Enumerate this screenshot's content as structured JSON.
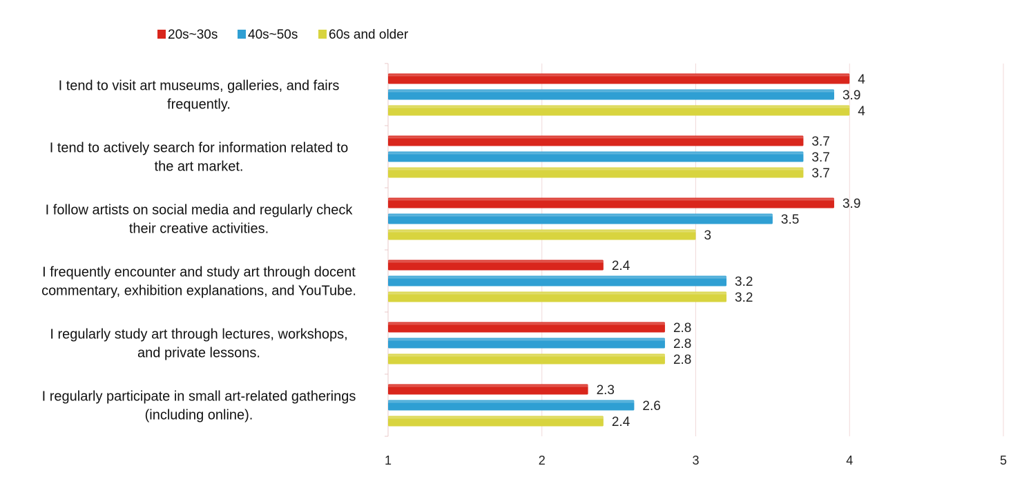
{
  "chart_data": {
    "type": "bar",
    "orientation": "horizontal",
    "categories": [
      [
        "I tend to visit art museums, galleries, and fairs",
        "frequently."
      ],
      [
        "I tend to actively search for information related to",
        "the art market."
      ],
      [
        "I follow artists on social media and regularly check",
        "their creative activities."
      ],
      [
        "I frequently encounter and study art through docent",
        "commentary, exhibition explanations, and YouTube."
      ],
      [
        "I regularly study art through lectures, workshops,",
        "and private lessons."
      ],
      [
        "I regularly participate in small art-related gatherings",
        "(including online)."
      ]
    ],
    "series": [
      {
        "name": "20s~30s",
        "color": "#d9261c",
        "values": [
          4,
          3.7,
          3.9,
          2.4,
          2.8,
          2.3
        ]
      },
      {
        "name": "40s~50s",
        "color": "#2f9fd3",
        "values": [
          3.9,
          3.7,
          3.5,
          3.2,
          2.8,
          2.6
        ]
      },
      {
        "name": "60s and older",
        "color": "#d8d43f",
        "values": [
          4,
          3.7,
          3,
          3.2,
          2.8,
          2.4
        ]
      }
    ],
    "xlim": [
      1,
      5
    ],
    "xticks": [
      1,
      2,
      3,
      4,
      5
    ],
    "legend": "top-left",
    "grid": true,
    "title": "",
    "xlabel": "",
    "ylabel": ""
  }
}
